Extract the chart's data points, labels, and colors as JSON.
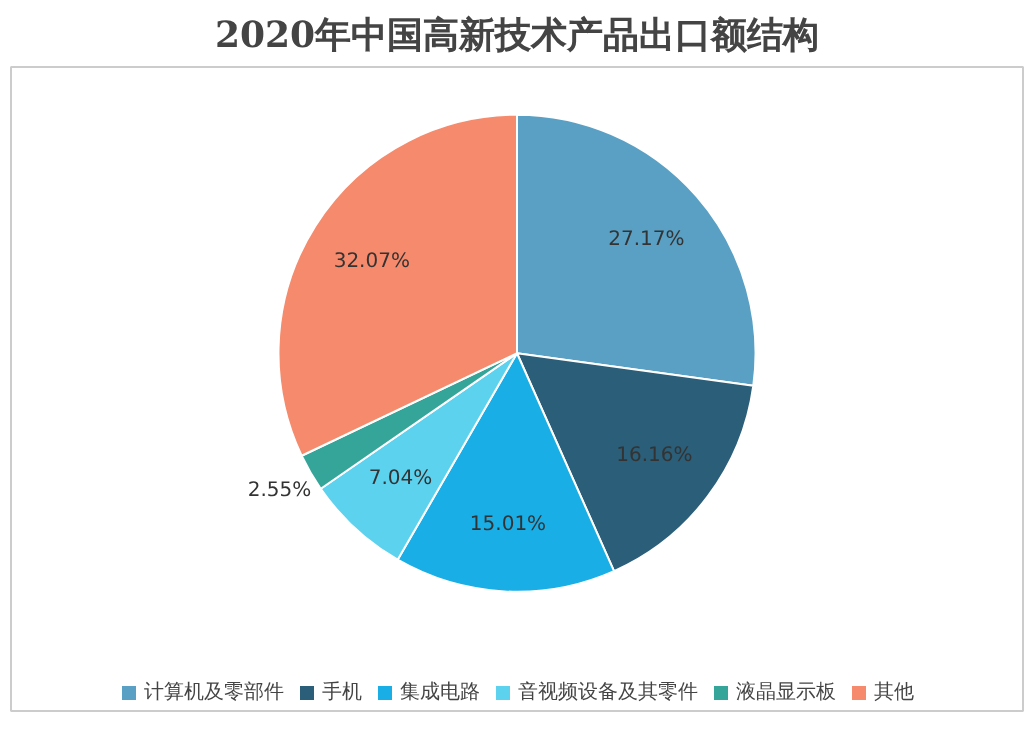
{
  "chart_data": {
    "type": "pie",
    "title": "2020年中国高新技术产品出口额结构",
    "categories": [
      "计算机及零部件",
      "手机",
      "集成电路",
      "音视频设备及其零件",
      "液晶显示板",
      "其他"
    ],
    "values": [
      27.17,
      16.16,
      15.01,
      7.04,
      2.55,
      32.07
    ],
    "colors": [
      "#5aa0c4",
      "#2b5e78",
      "#19aee6",
      "#5cd2ef",
      "#36a599",
      "#f58a6c"
    ],
    "value_labels": [
      "27.17%",
      "16.16%",
      "15.01%",
      "7.04%",
      "2.55%",
      "32.07%"
    ],
    "legend": "bottom"
  }
}
